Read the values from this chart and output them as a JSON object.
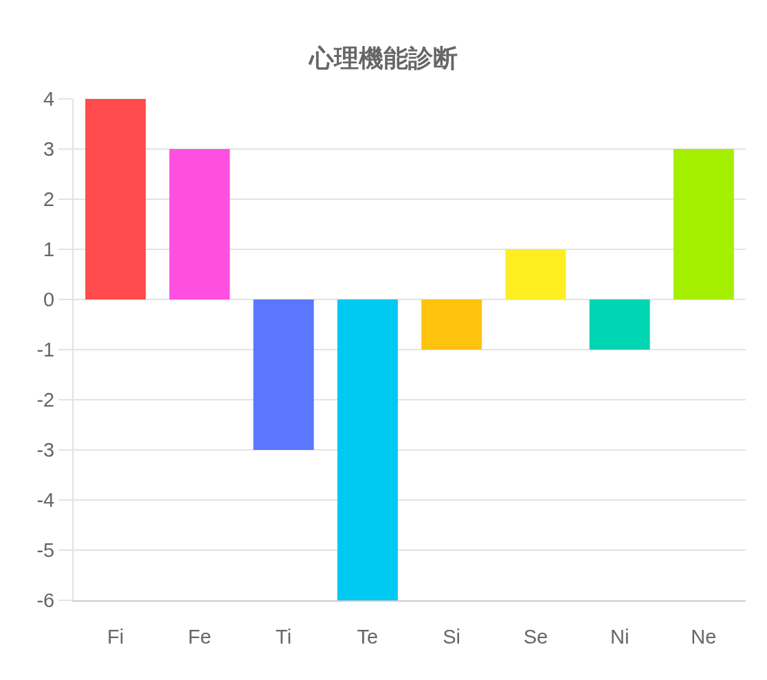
{
  "chart_data": {
    "type": "bar",
    "title": "心理機能診断",
    "categories": [
      "Fi",
      "Fe",
      "Ti",
      "Te",
      "Si",
      "Se",
      "Ni",
      "Ne"
    ],
    "values": [
      4,
      3,
      -3,
      -6,
      -1,
      1,
      -1,
      3
    ],
    "colors": [
      "#ff4b4b",
      "#ff4fe0",
      "#5b76ff",
      "#00c9f2",
      "#ffc20e",
      "#ffee22",
      "#00d6b4",
      "#a4f000"
    ],
    "ylim": [
      -6,
      4
    ],
    "yticks": [
      -6,
      -5,
      -4,
      -3,
      -2,
      -1,
      0,
      1,
      2,
      3,
      4
    ],
    "grid": "y"
  }
}
